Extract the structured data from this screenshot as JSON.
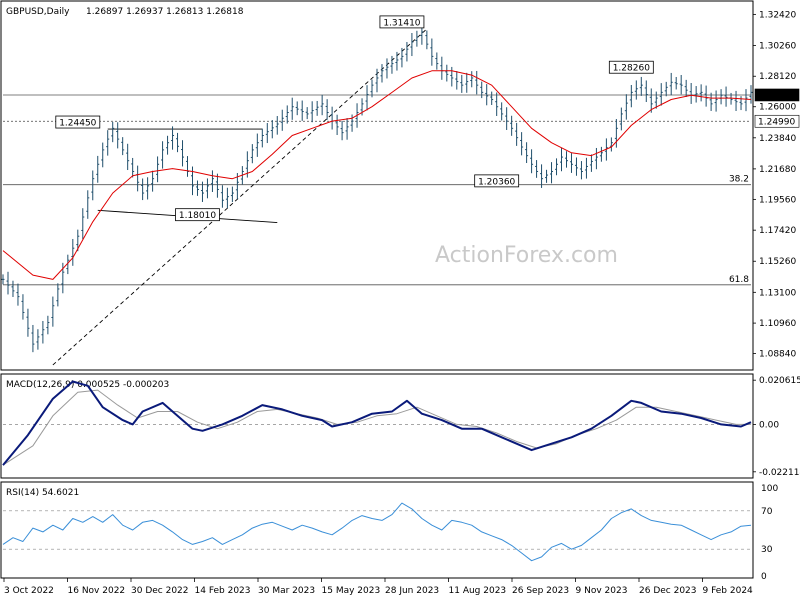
{
  "header": {
    "symbol": "GBPUSD,Daily",
    "ohlc": "1.26897 1.26937 1.26813 1.26818"
  },
  "watermark": "ActionForex.com",
  "colors": {
    "bars": "#1f4e6b",
    "ma": "#e00000",
    "macd": "#0a1a7a",
    "signal": "#9a9a9a",
    "rsi": "#3a8fd8",
    "current_price_bg": "#000000"
  },
  "chart_data": [
    {
      "type": "ohlc",
      "name": "main",
      "ylim": [
        1.077,
        1.3335
      ],
      "ticks": [
        1.3242,
        1.3026,
        1.2812,
        1.26,
        1.2384,
        1.2168,
        1.1956,
        1.1742,
        1.1526,
        1.131,
        1.1096,
        1.0884
      ],
      "tick_labels": [
        "1.32420",
        "1.30260",
        "1.28120",
        "1.26000",
        "1.23840",
        "1.21680",
        "1.19560",
        "1.17420",
        "1.15260",
        "1.13100",
        "1.10960",
        "1.08840"
      ],
      "x_labels": [
        "3 Oct 2022",
        "16 Nov 2022",
        "30 Dec 2022",
        "14 Feb 2023",
        "30 Mar 2023",
        "15 May 2023",
        "28 Jun 2023",
        "11 Aug 2023",
        "26 Sep 2023",
        "9 Nov 2023",
        "26 Dec 2023",
        "9 Feb 2024"
      ],
      "close_path": [
        [
          0,
          1.14
        ],
        [
          3,
          1.128
        ],
        [
          6,
          1.095
        ],
        [
          9,
          1.11
        ],
        [
          12,
          1.145
        ],
        [
          15,
          1.17
        ],
        [
          18,
          1.21
        ],
        [
          20,
          1.23
        ],
        [
          22,
          1.245
        ],
        [
          24,
          1.23
        ],
        [
          26,
          1.215
        ],
        [
          28,
          1.2
        ],
        [
          30,
          1.21
        ],
        [
          32,
          1.23
        ],
        [
          34,
          1.24
        ],
        [
          36,
          1.225
        ],
        [
          38,
          1.205
        ],
        [
          40,
          1.2
        ],
        [
          42,
          1.21
        ],
        [
          44,
          1.195
        ],
        [
          46,
          1.2
        ],
        [
          48,
          1.215
        ],
        [
          50,
          1.23
        ],
        [
          52,
          1.24
        ],
        [
          55,
          1.248
        ],
        [
          58,
          1.26
        ],
        [
          61,
          1.255
        ],
        [
          64,
          1.262
        ],
        [
          66,
          1.25
        ],
        [
          68,
          1.242
        ],
        [
          70,
          1.25
        ],
        [
          72,
          1.262
        ],
        [
          74,
          1.275
        ],
        [
          76,
          1.285
        ],
        [
          78,
          1.29
        ],
        [
          80,
          1.295
        ],
        [
          82,
          1.305
        ],
        [
          84,
          1.312
        ],
        [
          86,
          1.295
        ],
        [
          88,
          1.285
        ],
        [
          90,
          1.28
        ],
        [
          92,
          1.275
        ],
        [
          94,
          1.28
        ],
        [
          96,
          1.27
        ],
        [
          98,
          1.265
        ],
        [
          100,
          1.255
        ],
        [
          102,
          1.245
        ],
        [
          104,
          1.232
        ],
        [
          106,
          1.22
        ],
        [
          108,
          1.21
        ],
        [
          110,
          1.215
        ],
        [
          112,
          1.225
        ],
        [
          114,
          1.22
        ],
        [
          116,
          1.215
        ],
        [
          118,
          1.222
        ],
        [
          120,
          1.228
        ],
        [
          122,
          1.235
        ],
        [
          124,
          1.255
        ],
        [
          126,
          1.27
        ],
        [
          128,
          1.275
        ],
        [
          130,
          1.262
        ],
        [
          132,
          1.27
        ],
        [
          134,
          1.277
        ],
        [
          136,
          1.275
        ],
        [
          138,
          1.268
        ],
        [
          140,
          1.27
        ],
        [
          142,
          1.262
        ],
        [
          144,
          1.268
        ],
        [
          146,
          1.265
        ],
        [
          148,
          1.262
        ],
        [
          150,
          1.27
        ]
      ],
      "ma_path": [
        [
          0,
          1.16
        ],
        [
          6,
          1.143
        ],
        [
          10,
          1.14
        ],
        [
          14,
          1.155
        ],
        [
          18,
          1.18
        ],
        [
          22,
          1.2
        ],
        [
          26,
          1.212
        ],
        [
          30,
          1.215
        ],
        [
          34,
          1.217
        ],
        [
          38,
          1.215
        ],
        [
          42,
          1.212
        ],
        [
          46,
          1.21
        ],
        [
          50,
          1.215
        ],
        [
          54,
          1.227
        ],
        [
          58,
          1.24
        ],
        [
          62,
          1.245
        ],
        [
          66,
          1.25
        ],
        [
          70,
          1.252
        ],
        [
          74,
          1.26
        ],
        [
          78,
          1.27
        ],
        [
          82,
          1.28
        ],
        [
          86,
          1.285
        ],
        [
          90,
          1.285
        ],
        [
          94,
          1.282
        ],
        [
          98,
          1.275
        ],
        [
          102,
          1.26
        ],
        [
          106,
          1.245
        ],
        [
          110,
          1.235
        ],
        [
          114,
          1.228
        ],
        [
          118,
          1.226
        ],
        [
          122,
          1.232
        ],
        [
          126,
          1.247
        ],
        [
          130,
          1.258
        ],
        [
          134,
          1.265
        ],
        [
          138,
          1.268
        ],
        [
          142,
          1.266
        ],
        [
          146,
          1.266
        ],
        [
          150,
          1.265
        ]
      ],
      "horizontal_lines": [
        {
          "y": 1.2499,
          "style": "dotted"
        },
        {
          "y": 1.26818,
          "style": "solid"
        },
        {
          "y": 1.2058,
          "style": "solid",
          "label": "38.2"
        },
        {
          "y": 1.1362,
          "style": "solid",
          "label": "61.8"
        }
      ],
      "trendlines": [
        {
          "points": [
            [
              21,
              1.2445
            ],
            [
              52,
              1.2445
            ]
          ],
          "style": "solid"
        },
        {
          "points": [
            [
              19,
              1.188
            ],
            [
              55,
              1.1795
            ]
          ],
          "style": "solid"
        },
        {
          "points": [
            [
              10,
              1.0805
            ],
            [
              85,
              1.3141
            ]
          ],
          "style": "dashed"
        }
      ],
      "price_labels": [
        {
          "text": "1.31410",
          "x": 80,
          "y": 1.3141
        },
        {
          "text": "1.28260",
          "x": 126,
          "y": 1.2826
        },
        {
          "text": "1.24450",
          "x": 15,
          "y": 1.2445
        },
        {
          "text": "1.18010",
          "x": 39,
          "y": 1.1801
        },
        {
          "text": "1.20360",
          "x": 99,
          "y": 1.2036
        }
      ],
      "axis_markers": [
        {
          "text": "1.26818",
          "y": 1.26818,
          "dark": true
        },
        {
          "text": "1.24990",
          "y": 1.2499,
          "dark": false
        }
      ]
    },
    {
      "type": "line",
      "name": "macd",
      "title": "MACD(12,26,9) 0.000525 -0.000203",
      "ylim": [
        -0.025,
        0.0235
      ],
      "ticks": [
        0.020615,
        0.0,
        -0.022114
      ],
      "tick_labels": [
        "0.020615",
        "0.00",
        "-0.022114"
      ],
      "series": [
        {
          "points": [
            [
              0,
              -0.019
            ],
            [
              5,
              -0.005
            ],
            [
              10,
              0.012
            ],
            [
              14,
              0.02
            ],
            [
              17,
              0.018
            ],
            [
              20,
              0.008
            ],
            [
              24,
              0.002
            ],
            [
              26,
              0.0
            ],
            [
              28,
              0.006
            ],
            [
              32,
              0.01
            ],
            [
              36,
              0.002
            ],
            [
              38,
              -0.002
            ],
            [
              40,
              -0.003
            ],
            [
              44,
              0.0
            ],
            [
              48,
              0.004
            ],
            [
              52,
              0.009
            ],
            [
              56,
              0.007
            ],
            [
              60,
              0.004
            ],
            [
              64,
              0.002
            ],
            [
              66,
              -0.001
            ],
            [
              70,
              0.001
            ],
            [
              74,
              0.005
            ],
            [
              78,
              0.006
            ],
            [
              81,
              0.011
            ],
            [
              84,
              0.005
            ],
            [
              88,
              0.002
            ],
            [
              92,
              -0.002
            ],
            [
              96,
              -0.002
            ],
            [
              100,
              -0.006
            ],
            [
              104,
              -0.01
            ],
            [
              106,
              -0.012
            ],
            [
              110,
              -0.009
            ],
            [
              114,
              -0.006
            ],
            [
              118,
              -0.002
            ],
            [
              122,
              0.004
            ],
            [
              126,
              0.011
            ],
            [
              128,
              0.01
            ],
            [
              132,
              0.006
            ],
            [
              136,
              0.005
            ],
            [
              140,
              0.003
            ],
            [
              144,
              0.0
            ],
            [
              148,
              -0.001
            ],
            [
              150,
              0.001
            ]
          ]
        },
        {
          "points": [
            [
              0,
              -0.019
            ],
            [
              6,
              -0.01
            ],
            [
              10,
              0.004
            ],
            [
              15,
              0.015
            ],
            [
              19,
              0.016
            ],
            [
              23,
              0.009
            ],
            [
              27,
              0.003
            ],
            [
              31,
              0.006
            ],
            [
              35,
              0.006
            ],
            [
              39,
              0.001
            ],
            [
              43,
              -0.002
            ],
            [
              47,
              0.001
            ],
            [
              51,
              0.006
            ],
            [
              55,
              0.007
            ],
            [
              59,
              0.005
            ],
            [
              63,
              0.003
            ],
            [
              67,
              0.0
            ],
            [
              71,
              0.001
            ],
            [
              75,
              0.004
            ],
            [
              79,
              0.005
            ],
            [
              83,
              0.008
            ],
            [
              87,
              0.004
            ],
            [
              91,
              0.0
            ],
            [
              95,
              -0.001
            ],
            [
              99,
              -0.004
            ],
            [
              103,
              -0.008
            ],
            [
              107,
              -0.011
            ],
            [
              111,
              -0.009
            ],
            [
              115,
              -0.005
            ],
            [
              119,
              -0.002
            ],
            [
              123,
              0.002
            ],
            [
              127,
              0.008
            ],
            [
              131,
              0.008
            ],
            [
              135,
              0.006
            ],
            [
              139,
              0.004
            ],
            [
              143,
              0.002
            ],
            [
              147,
              0.0
            ],
            [
              150,
              0.0
            ]
          ]
        }
      ]
    },
    {
      "type": "line",
      "name": "rsi",
      "title": "RSI(14) 54.6021",
      "ylim": [
        0,
        100
      ],
      "ticks": [
        100,
        70,
        30,
        0
      ],
      "tick_labels": [
        "100",
        "70",
        "30",
        "0"
      ],
      "levels": [
        70,
        30
      ],
      "series": [
        {
          "points": [
            [
              0,
              35
            ],
            [
              2,
              42
            ],
            [
              4,
              38
            ],
            [
              6,
              52
            ],
            [
              8,
              48
            ],
            [
              10,
              55
            ],
            [
              12,
              50
            ],
            [
              14,
              62
            ],
            [
              16,
              58
            ],
            [
              18,
              64
            ],
            [
              20,
              58
            ],
            [
              22,
              66
            ],
            [
              24,
              55
            ],
            [
              26,
              50
            ],
            [
              28,
              58
            ],
            [
              30,
              60
            ],
            [
              32,
              55
            ],
            [
              34,
              48
            ],
            [
              36,
              40
            ],
            [
              38,
              35
            ],
            [
              40,
              38
            ],
            [
              42,
              42
            ],
            [
              44,
              35
            ],
            [
              46,
              40
            ],
            [
              48,
              45
            ],
            [
              50,
              52
            ],
            [
              52,
              56
            ],
            [
              54,
              58
            ],
            [
              56,
              54
            ],
            [
              58,
              50
            ],
            [
              60,
              55
            ],
            [
              62,
              52
            ],
            [
              64,
              48
            ],
            [
              66,
              45
            ],
            [
              68,
              52
            ],
            [
              70,
              60
            ],
            [
              72,
              65
            ],
            [
              74,
              62
            ],
            [
              76,
              60
            ],
            [
              78,
              66
            ],
            [
              80,
              78
            ],
            [
              82,
              72
            ],
            [
              84,
              62
            ],
            [
              86,
              55
            ],
            [
              88,
              50
            ],
            [
              90,
              60
            ],
            [
              92,
              58
            ],
            [
              94,
              55
            ],
            [
              96,
              48
            ],
            [
              98,
              44
            ],
            [
              100,
              40
            ],
            [
              102,
              34
            ],
            [
              104,
              26
            ],
            [
              106,
              18
            ],
            [
              108,
              22
            ],
            [
              110,
              32
            ],
            [
              112,
              36
            ],
            [
              114,
              30
            ],
            [
              116,
              34
            ],
            [
              118,
              42
            ],
            [
              120,
              50
            ],
            [
              122,
              62
            ],
            [
              124,
              68
            ],
            [
              126,
              72
            ],
            [
              128,
              65
            ],
            [
              130,
              60
            ],
            [
              132,
              58
            ],
            [
              134,
              56
            ],
            [
              136,
              55
            ],
            [
              138,
              50
            ],
            [
              140,
              45
            ],
            [
              142,
              40
            ],
            [
              144,
              45
            ],
            [
              146,
              48
            ],
            [
              148,
              54
            ],
            [
              150,
              55
            ]
          ]
        }
      ]
    }
  ]
}
